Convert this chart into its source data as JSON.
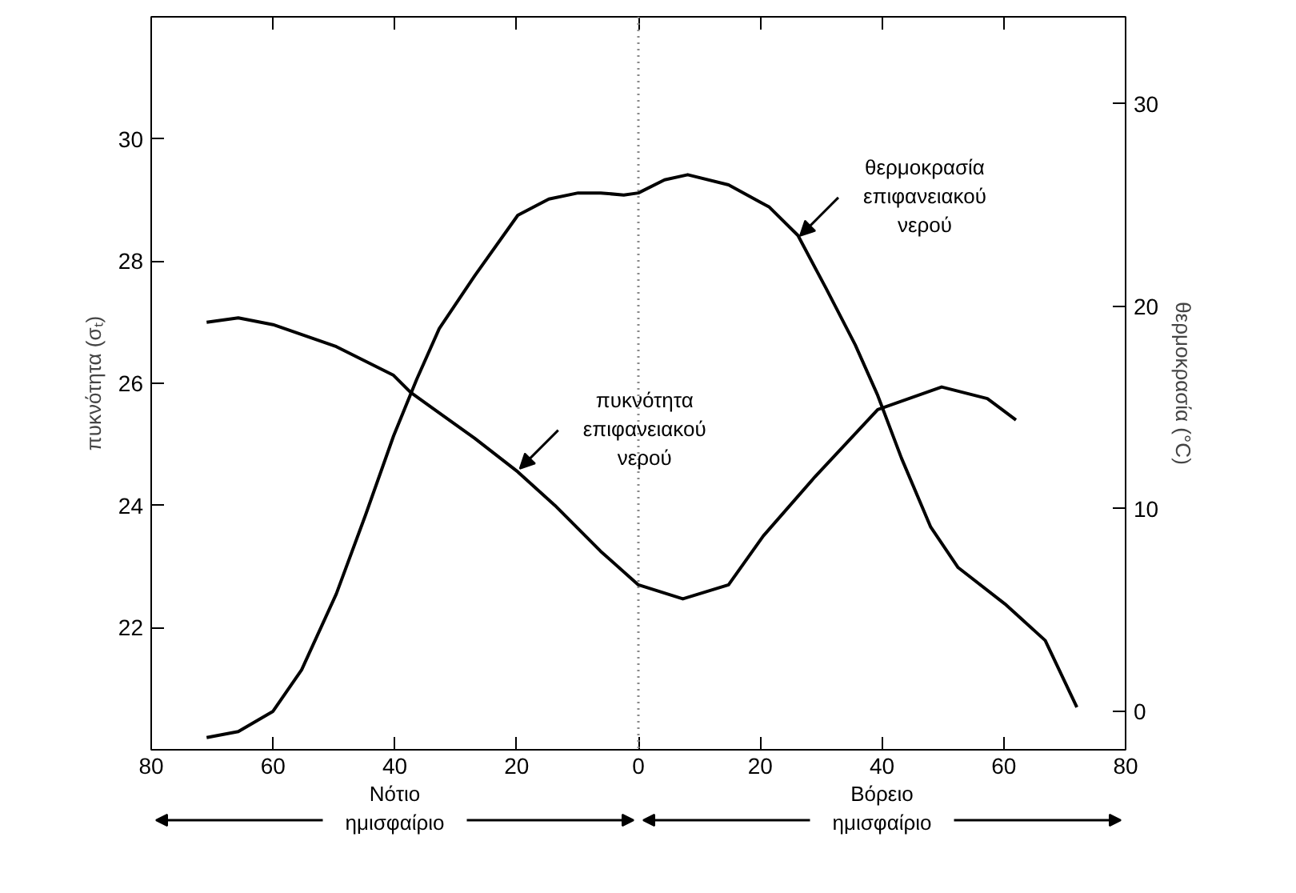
{
  "chart_data": {
    "type": "line",
    "xlim": [
      -80,
      80
    ],
    "xticks": [
      {
        "value": -80,
        "label": "80"
      },
      {
        "value": -60,
        "label": "60"
      },
      {
        "value": -40,
        "label": "40"
      },
      {
        "value": -20,
        "label": "20"
      },
      0,
      20,
      40,
      60,
      80
    ],
    "ylim": [
      20,
      32
    ],
    "yticks": [
      22,
      24,
      26,
      28,
      30
    ],
    "y2lim": [
      -1.9,
      34.3
    ],
    "y2ticks": [
      0,
      10,
      20,
      30
    ],
    "ylabel": "πυκνότητα (σₜ)",
    "y2label": "θερμοκρασία (°C)",
    "grid": false,
    "marker": "none",
    "line_style": "solid",
    "series": [
      {
        "color": "#000000",
        "x": [
          -70.9,
          -65.7,
          -60,
          -49.6,
          -40.2,
          -37.4,
          -26.9,
          -19.8,
          -13.7,
          -6.2,
          0,
          7.3,
          14.8,
          20.5,
          29,
          39.3,
          49.8,
          57.3,
          62
        ],
        "values": [
          27.0,
          27.07,
          26.96,
          26.6,
          26.13,
          25.85,
          25.1,
          24.55,
          24.0,
          23.25,
          22.7,
          22.47,
          22.7,
          23.5,
          24.47,
          25.57,
          25.94,
          25.75,
          25.4
        ]
      },
      {
        "color": "#000000",
        "axis": "y2",
        "x": [
          -70.9,
          -65.7,
          -60,
          -55.3,
          -49.6,
          -44.8,
          -40.2,
          -36.4,
          -32.7,
          -26.9,
          -19.8,
          -14.7,
          -9.9,
          -6.2,
          -2.4,
          0,
          4.3,
          8.1,
          14.8,
          21.5,
          26.2,
          30.8,
          35.6,
          39.3,
          43.2,
          48,
          52.5,
          60.2,
          66.8,
          72
        ],
        "values": [
          -1.3,
          -1.0,
          0,
          2.05,
          5.8,
          9.7,
          13.6,
          16.4,
          18.9,
          21.5,
          24.5,
          25.3,
          25.6,
          25.6,
          25.5,
          25.6,
          26.25,
          26.5,
          26.0,
          24.9,
          23.5,
          20.9,
          18.1,
          15.6,
          12.5,
          9.1,
          7.1,
          5.3,
          3.5,
          0.2
        ]
      }
    ],
    "ref_lines": [
      {
        "axis": "x",
        "value": 0,
        "label": null,
        "color": "#888888",
        "line_style": "dotted"
      }
    ],
    "annotations": [
      {
        "text": "πυκνότητα\nεπιφανειακού\nνερού",
        "x": -20,
        "y": 24.55
      },
      {
        "text": "θερμοκρασία\nεπιφανειακού\nνερού",
        "x": 26,
        "y": 28.36
      },
      "Νότιο\nημισφαίριο",
      "Βόρειο\nημισφαίριο"
    ]
  }
}
